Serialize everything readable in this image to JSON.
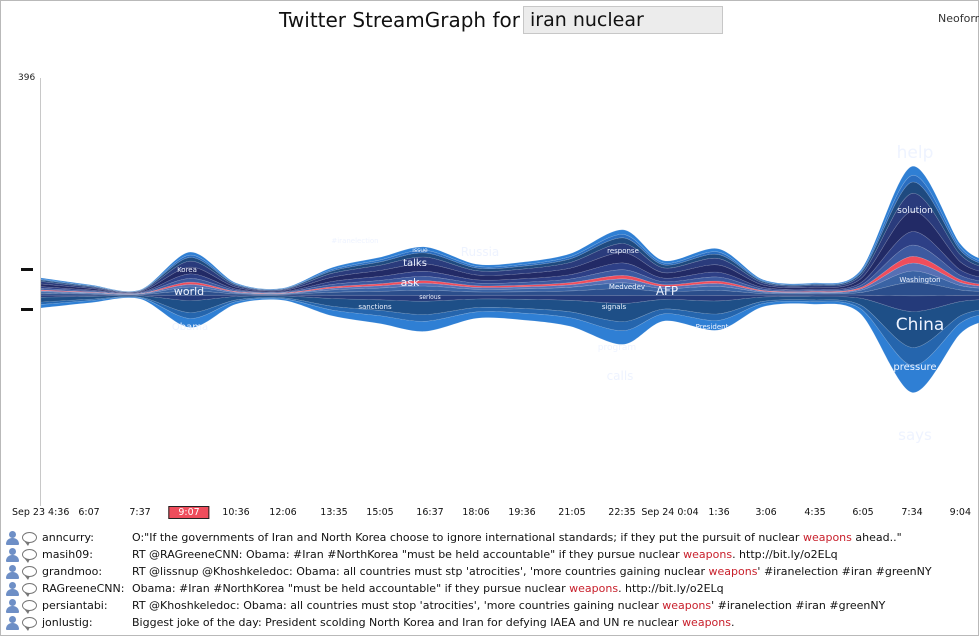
{
  "header": {
    "title": "Twitter StreamGraph for",
    "query": "iran nuclear",
    "brand": "Neoform"
  },
  "y_axis_max": "396",
  "time_axis": {
    "selected_index": 3,
    "ticks": [
      "Sep 23 4:36",
      "6:07",
      "7:37",
      "9:07",
      "10:36",
      "12:06",
      "13:35",
      "15:05",
      "16:37",
      "18:06",
      "19:36",
      "21:05",
      "22:35",
      "Sep 24 0:04",
      "1:36",
      "3:06",
      "4:35",
      "6:05",
      "7:34",
      "9:04"
    ]
  },
  "colors": {
    "highlight": "#ef4d5c",
    "outer": "#2f7fd4",
    "inner": "#1e4f87",
    "deep": "#232a63",
    "keyword": "#c8202c"
  },
  "highlighted_term": "weapons",
  "stream_labels": [
    "help",
    "solution",
    "China",
    "pressure",
    "says",
    "Washington",
    "Russia",
    "talks",
    "issue",
    "ask",
    "serious",
    "sanctions",
    "#iranelection",
    "Korea",
    "world",
    "Obama",
    "AFP",
    "Medvedev",
    "signals",
    "President",
    "program",
    "calls",
    "response"
  ],
  "tweets": [
    {
      "author": "anncurry:",
      "pre": "O:\"If the governments of Iran and North Korea choose to ignore international standards; if they put the pursuit of nuclear ",
      "kw": "weapons",
      "post": " ahead..\""
    },
    {
      "author": "masih09:",
      "pre": "RT @RAGreeneCNN: Obama: #Iran #NorthKorea \"must be held accountable\" if they pursue nuclear ",
      "kw": "weapons",
      "post": ". http://bit.ly/o2ELq"
    },
    {
      "author": "grandmoo:",
      "pre": "RT @lissnup @Khoshkeledoc: Obama: all countries must stp 'atrocities', 'more countries gaining nuclear ",
      "kw": "weapons",
      "post": "' #iranelection #iran #greenNY"
    },
    {
      "author": "RAGreeneCNN:",
      "pre": "Obama: #Iran #NorthKorea \"must be held accountable\" if they pursue nuclear ",
      "kw": "weapons",
      "post": ". http://bit.ly/o2ELq"
    },
    {
      "author": "persiantabi:",
      "pre": "RT @Khoshkeledoc: Obama: all countries must stop 'atrocities', 'more countries gaining nuclear ",
      "kw": "weapons",
      "post": "' #iranelection #iran #greenNY"
    },
    {
      "author": "jonlustig:",
      "pre": "Biggest joke of the day: President scolding North Korea and Iran for defying IAEA and UN re nuclear ",
      "kw": "weapons",
      "post": "."
    }
  ]
}
